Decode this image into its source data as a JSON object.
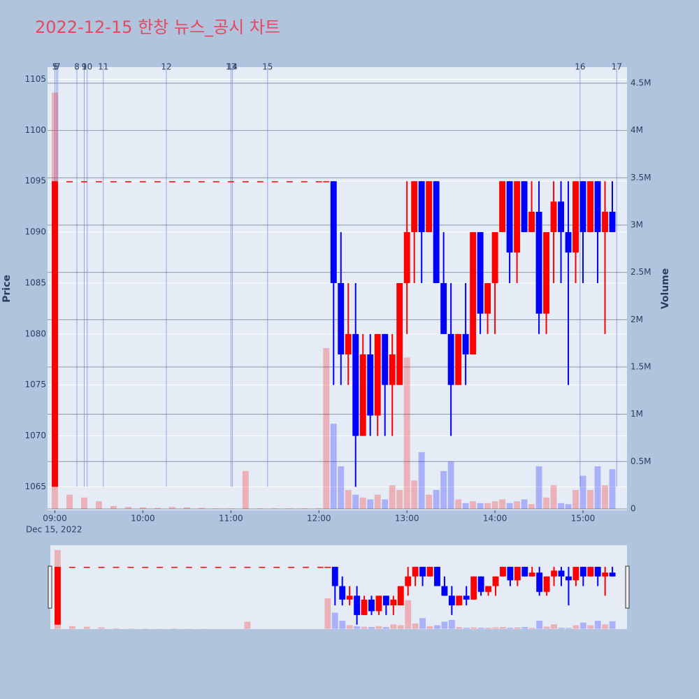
{
  "chart_data": {
    "type": "candlestick",
    "title": "2022-12-15 한창 뉴스_공시 차트",
    "x_date": "Dec 15, 2022",
    "y_label": "Price",
    "y2_label": "Volume",
    "xlim": [
      "08:55",
      "15:30"
    ],
    "xticks": [
      "09:00",
      "10:00",
      "11:00",
      "12:00",
      "13:00",
      "14:00",
      "15:00"
    ],
    "ylim": [
      1062.7,
      1106.2
    ],
    "yticks": [
      1065,
      1070,
      1075,
      1080,
      1085,
      1090,
      1095,
      1100,
      1105
    ],
    "y2lim": [
      -15000,
      4670000
    ],
    "y2ticks": [
      0,
      {
        "value": 500000,
        "label": "0.5M"
      },
      {
        "value": 1000000,
        "label": "1M"
      },
      {
        "value": 1500000,
        "label": "1.5M"
      },
      {
        "value": 2000000,
        "label": "2M"
      },
      {
        "value": 2500000,
        "label": "2.5M"
      },
      {
        "value": 3000000,
        "label": "3M"
      },
      {
        "value": 3500000,
        "label": "3.5M"
      },
      {
        "value": 4000000,
        "label": "4M"
      },
      {
        "value": 4500000,
        "label": "4.5M"
      }
    ],
    "up_color": "#ff0000",
    "down_color": "#0000ff",
    "news_color": "#6f86e0",
    "rangeslider": true,
    "x": [
      "09:00",
      "09:10",
      "09:20",
      "09:30",
      "09:40",
      "09:50",
      "10:00",
      "10:10",
      "10:20",
      "10:30",
      "10:40",
      "10:50",
      "11:00",
      "11:10",
      "11:20",
      "11:30",
      "11:40",
      "11:50",
      "12:00",
      "12:05",
      "12:10",
      "12:15",
      "12:20",
      "12:25",
      "12:30",
      "12:35",
      "12:40",
      "12:45",
      "12:50",
      "12:55",
      "13:00",
      "13:05",
      "13:10",
      "13:15",
      "13:20",
      "13:25",
      "13:30",
      "13:35",
      "13:40",
      "13:45",
      "13:50",
      "13:55",
      "14:00",
      "14:05",
      "14:10",
      "14:15",
      "14:20",
      "14:25",
      "14:30",
      "14:35",
      "14:40",
      "14:45",
      "14:50",
      "14:55",
      "15:00",
      "15:05",
      "15:10",
      "15:15",
      "15:20"
    ],
    "open": [
      1065,
      1095,
      1095,
      1095,
      1095,
      1095,
      1095,
      1095,
      1095,
      1095,
      1095,
      1095,
      1095,
      1095,
      1095,
      1095,
      1095,
      1095,
      1095,
      1095,
      1095,
      1085,
      1078,
      1080,
      1070,
      1078,
      1072,
      1080,
      1075,
      1075,
      1085,
      1090,
      1095,
      1090,
      1095,
      1085,
      1080,
      1075,
      1080,
      1078,
      1090,
      1082,
      1085,
      1090,
      1095,
      1088,
      1095,
      1090,
      1092,
      1082,
      1090,
      1093,
      1090,
      1088,
      1095,
      1090,
      1095,
      1090,
      1092
    ],
    "high": [
      1095,
      1095,
      1095,
      1095,
      1095,
      1095,
      1095,
      1095,
      1095,
      1095,
      1095,
      1095,
      1095,
      1095,
      1095,
      1095,
      1095,
      1095,
      1095,
      1095,
      1095,
      1090,
      1085,
      1085,
      1080,
      1080,
      1080,
      1080,
      1080,
      1085,
      1095,
      1095,
      1095,
      1095,
      1095,
      1090,
      1085,
      1080,
      1085,
      1090,
      1090,
      1085,
      1090,
      1095,
      1095,
      1095,
      1095,
      1095,
      1095,
      1090,
      1095,
      1095,
      1095,
      1095,
      1095,
      1095,
      1095,
      1095,
      1095
    ],
    "low": [
      1065,
      1095,
      1095,
      1095,
      1095,
      1095,
      1095,
      1095,
      1095,
      1095,
      1095,
      1095,
      1095,
      1095,
      1095,
      1095,
      1095,
      1095,
      1095,
      1095,
      1075,
      1075,
      1075,
      1065,
      1070,
      1070,
      1070,
      1070,
      1070,
      1075,
      1080,
      1085,
      1085,
      1090,
      1085,
      1080,
      1070,
      1075,
      1075,
      1078,
      1080,
      1080,
      1080,
      1090,
      1085,
      1085,
      1090,
      1090,
      1080,
      1080,
      1085,
      1085,
      1075,
      1085,
      1085,
      1090,
      1085,
      1080,
      1090
    ],
    "close": [
      1095,
      1095,
      1095,
      1095,
      1095,
      1095,
      1095,
      1095,
      1095,
      1095,
      1095,
      1095,
      1095,
      1095,
      1095,
      1095,
      1095,
      1095,
      1095,
      1095,
      1085,
      1078,
      1080,
      1070,
      1078,
      1072,
      1080,
      1075,
      1078,
      1085,
      1090,
      1095,
      1090,
      1095,
      1085,
      1080,
      1075,
      1080,
      1078,
      1090,
      1082,
      1085,
      1090,
      1095,
      1088,
      1095,
      1090,
      1092,
      1082,
      1090,
      1093,
      1090,
      1088,
      1095,
      1090,
      1095,
      1090,
      1092,
      1090
    ],
    "volume": [
      4400000,
      150000,
      120000,
      80000,
      30000,
      20000,
      15000,
      10000,
      20000,
      15000,
      10000,
      5000,
      5000,
      400000,
      5000,
      5000,
      5000,
      5000,
      5000,
      1700000,
      900000,
      450000,
      200000,
      150000,
      120000,
      100000,
      150000,
      100000,
      250000,
      200000,
      1600000,
      300000,
      600000,
      150000,
      200000,
      400000,
      500000,
      100000,
      60000,
      80000,
      60000,
      60000,
      80000,
      100000,
      60000,
      80000,
      100000,
      50000,
      450000,
      120000,
      250000,
      60000,
      50000,
      200000,
      350000,
      200000,
      450000,
      250000,
      420000
    ],
    "news": [
      {
        "x": "09:00",
        "label": "5"
      },
      {
        "x": "09:01",
        "label": "6"
      },
      {
        "x": "09:02",
        "label": "7"
      },
      {
        "x": "09:15",
        "label": "8"
      },
      {
        "x": "09:20",
        "label": "9"
      },
      {
        "x": "09:22",
        "label": "10"
      },
      {
        "x": "09:33",
        "label": "11"
      },
      {
        "x": "10:16",
        "label": "12"
      },
      {
        "x": "11:00",
        "label": "13"
      },
      {
        "x": "11:01",
        "label": "14"
      },
      {
        "x": "11:25",
        "label": "15"
      },
      {
        "x": "14:58",
        "label": "16"
      },
      {
        "x": "15:23",
        "label": "17"
      }
    ]
  }
}
